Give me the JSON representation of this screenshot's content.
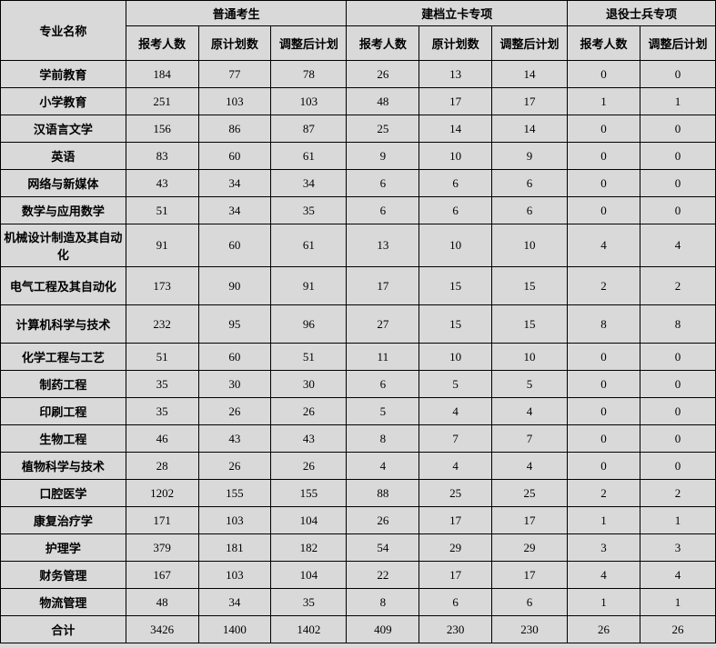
{
  "table": {
    "background_color": "#d9d9d9",
    "border_color": "#000000",
    "text_color": "#000000",
    "font_size": 13,
    "col_name_width": 126,
    "group_col_width": 73,
    "header": {
      "name_col": "专业名称",
      "groups": [
        "普通考生",
        "建档立卡专项",
        "退役士兵专项"
      ],
      "sub_g1": [
        "报考人数",
        "原计划数",
        "调整后计划"
      ],
      "sub_g2": [
        "报考人数",
        "原计划数",
        "调整后计划"
      ],
      "sub_g3": [
        "报考人数",
        "调整后计划"
      ]
    },
    "tall_rows": [
      6,
      7,
      8
    ],
    "rows": [
      {
        "name": "学前教育",
        "g1": [
          184,
          77,
          78
        ],
        "g2": [
          26,
          13,
          14
        ],
        "g3": [
          0,
          0
        ]
      },
      {
        "name": "小学教育",
        "g1": [
          251,
          103,
          103
        ],
        "g2": [
          48,
          17,
          17
        ],
        "g3": [
          1,
          1
        ]
      },
      {
        "name": "汉语言文学",
        "g1": [
          156,
          86,
          87
        ],
        "g2": [
          25,
          14,
          14
        ],
        "g3": [
          0,
          0
        ]
      },
      {
        "name": "英语",
        "g1": [
          83,
          60,
          61
        ],
        "g2": [
          9,
          10,
          9
        ],
        "g3": [
          0,
          0
        ]
      },
      {
        "name": "网络与新媒体",
        "g1": [
          43,
          34,
          34
        ],
        "g2": [
          6,
          6,
          6
        ],
        "g3": [
          0,
          0
        ]
      },
      {
        "name": "数学与应用数学",
        "g1": [
          51,
          34,
          35
        ],
        "g2": [
          6,
          6,
          6
        ],
        "g3": [
          0,
          0
        ]
      },
      {
        "name": "机械设计制造及其自动化",
        "g1": [
          91,
          60,
          61
        ],
        "g2": [
          13,
          10,
          10
        ],
        "g3": [
          4,
          4
        ]
      },
      {
        "name": "电气工程及其自动化",
        "g1": [
          173,
          90,
          91
        ],
        "g2": [
          17,
          15,
          15
        ],
        "g3": [
          2,
          2
        ]
      },
      {
        "name": "计算机科学与技术",
        "g1": [
          232,
          95,
          96
        ],
        "g2": [
          27,
          15,
          15
        ],
        "g3": [
          8,
          8
        ]
      },
      {
        "name": "化学工程与工艺",
        "g1": [
          51,
          60,
          51
        ],
        "g2": [
          11,
          10,
          10
        ],
        "g3": [
          0,
          0
        ]
      },
      {
        "name": "制药工程",
        "g1": [
          35,
          30,
          30
        ],
        "g2": [
          6,
          5,
          5
        ],
        "g3": [
          0,
          0
        ]
      },
      {
        "name": "印刷工程",
        "g1": [
          35,
          26,
          26
        ],
        "g2": [
          5,
          4,
          4
        ],
        "g3": [
          0,
          0
        ]
      },
      {
        "name": "生物工程",
        "g1": [
          46,
          43,
          43
        ],
        "g2": [
          8,
          7,
          7
        ],
        "g3": [
          0,
          0
        ]
      },
      {
        "name": "植物科学与技术",
        "g1": [
          28,
          26,
          26
        ],
        "g2": [
          4,
          4,
          4
        ],
        "g3": [
          0,
          0
        ]
      },
      {
        "name": "口腔医学",
        "g1": [
          1202,
          155,
          155
        ],
        "g2": [
          88,
          25,
          25
        ],
        "g3": [
          2,
          2
        ]
      },
      {
        "name": "康复治疗学",
        "g1": [
          171,
          103,
          104
        ],
        "g2": [
          26,
          17,
          17
        ],
        "g3": [
          1,
          1
        ]
      },
      {
        "name": "护理学",
        "g1": [
          379,
          181,
          182
        ],
        "g2": [
          54,
          29,
          29
        ],
        "g3": [
          3,
          3
        ]
      },
      {
        "name": "财务管理",
        "g1": [
          167,
          103,
          104
        ],
        "g2": [
          22,
          17,
          17
        ],
        "g3": [
          4,
          4
        ]
      },
      {
        "name": "物流管理",
        "g1": [
          48,
          34,
          35
        ],
        "g2": [
          8,
          6,
          6
        ],
        "g3": [
          1,
          1
        ]
      },
      {
        "name": "合计",
        "g1": [
          3426,
          1400,
          1402
        ],
        "g2": [
          409,
          230,
          230
        ],
        "g3": [
          26,
          26
        ]
      }
    ]
  }
}
